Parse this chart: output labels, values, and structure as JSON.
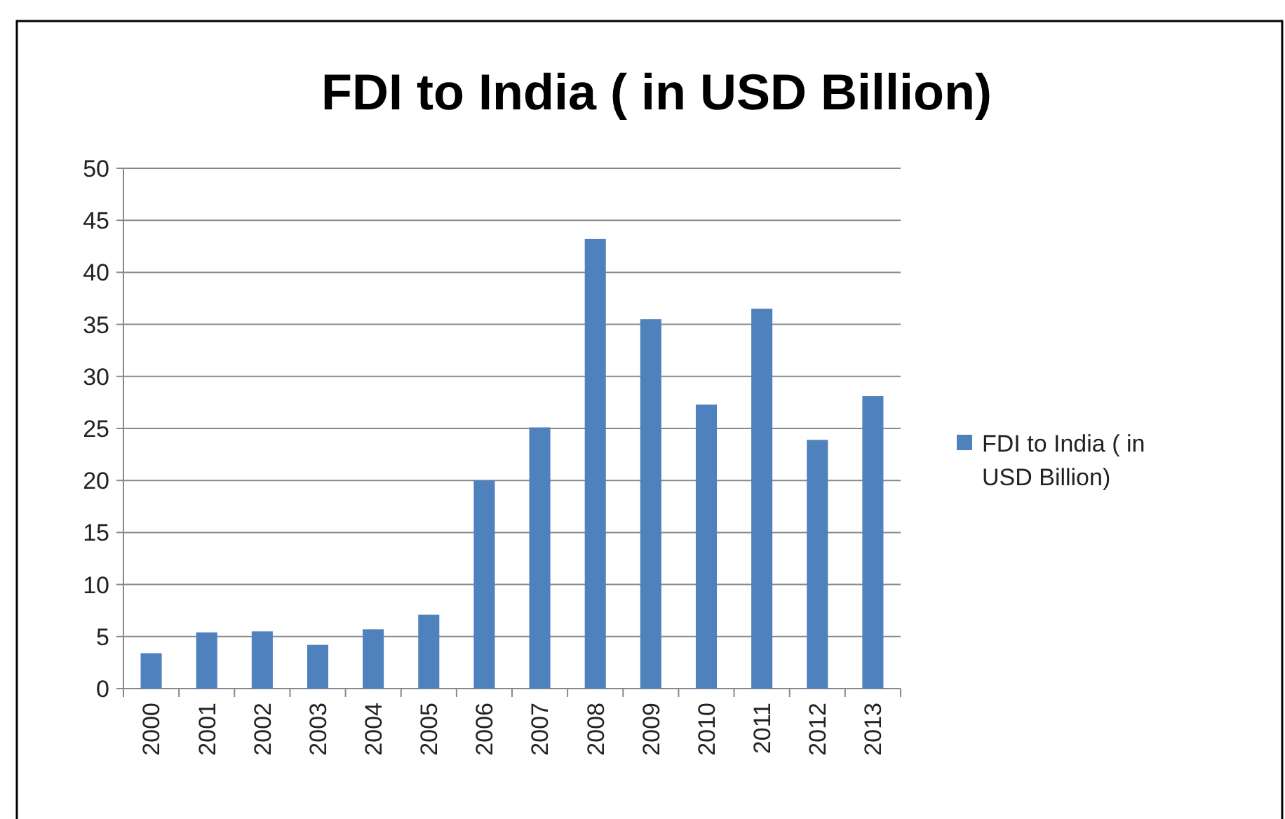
{
  "chart_data": {
    "type": "bar",
    "title": "FDI to India ( in USD Billion)",
    "categories": [
      "2000",
      "2001",
      "2002",
      "2003",
      "2004",
      "2005",
      "2006",
      "2007",
      "2008",
      "2009",
      "2010",
      "2011",
      "2012",
      "2013"
    ],
    "series": [
      {
        "name": "FDI to India ( in USD Billion)",
        "color": "#4f81bd",
        "values": [
          3.4,
          5.4,
          5.5,
          4.2,
          5.7,
          7.1,
          20.0,
          25.1,
          43.2,
          35.5,
          27.3,
          36.5,
          23.9,
          28.1
        ]
      }
    ],
    "ylim": [
      0,
      50
    ],
    "yticks": [
      0,
      5,
      10,
      15,
      20,
      25,
      30,
      35,
      40,
      45,
      50
    ],
    "grid": "y",
    "legend": "right"
  }
}
